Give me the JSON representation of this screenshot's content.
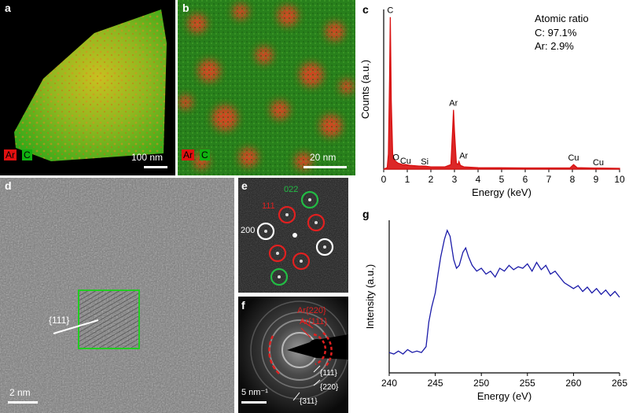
{
  "panels": {
    "a": {
      "label": "a",
      "scale": "100 nm",
      "legend": [
        "Ar",
        "C"
      ]
    },
    "b": {
      "label": "b",
      "scale": "20 nm",
      "legend": [
        "Ar",
        "C"
      ]
    },
    "d": {
      "label": "d",
      "scale": "2 nm",
      "plane": "{111}"
    },
    "e": {
      "label": "e",
      "spots": [
        "022",
        "111",
        "200"
      ]
    },
    "f": {
      "label": "f",
      "scale": "5 nm⁻¹",
      "rings": [
        "Ar{220}",
        "Ar{111}",
        "{111}",
        "{220}",
        "{311}"
      ]
    }
  },
  "colors": {
    "ar": "#e01010",
    "c": "#10b010",
    "eds": "#d81010",
    "eels": "#1a1aa8"
  },
  "chart_data": [
    {
      "panel": "c",
      "type": "line",
      "xlabel": "Energy (keV)",
      "ylabel": "Counts (a.u.)",
      "xlim": [
        0,
        10
      ],
      "xticks": [
        0,
        1,
        2,
        3,
        4,
        5,
        6,
        7,
        8,
        9,
        10
      ],
      "annotation": {
        "title": "Atomic ratio",
        "lines": [
          "C: 97.1%",
          "Ar: 2.9%"
        ]
      },
      "peaks": [
        {
          "label": "C",
          "x": 0.28,
          "y": 100
        },
        {
          "label": "O",
          "x": 0.52,
          "y": 4
        },
        {
          "label": "Cu",
          "x": 0.93,
          "y": 2
        },
        {
          "label": "Si",
          "x": 1.74,
          "y": 1.5
        },
        {
          "label": "Ar",
          "x": 2.96,
          "y": 39
        },
        {
          "label": "Ar",
          "x": 3.19,
          "y": 5
        },
        {
          "label": "Cu",
          "x": 8.05,
          "y": 3
        },
        {
          "label": "Cu",
          "x": 8.9,
          "y": 1
        }
      ],
      "x": [
        0,
        0.15,
        0.2,
        0.25,
        0.28,
        0.32,
        0.38,
        0.45,
        0.52,
        0.6,
        0.8,
        0.93,
        1.1,
        1.5,
        1.74,
        2.0,
        2.6,
        2.85,
        2.92,
        2.96,
        3.0,
        3.08,
        3.15,
        3.19,
        3.25,
        3.4,
        4.0,
        6.0,
        7.9,
        8.05,
        8.2,
        8.9,
        10
      ],
      "y": [
        0,
        1,
        10,
        60,
        100,
        45,
        10,
        6,
        5,
        4,
        3,
        3,
        2.5,
        2,
        2,
        1.5,
        1.5,
        3,
        25,
        39,
        25,
        4,
        3,
        5,
        2.5,
        1.5,
        1,
        0.8,
        0.8,
        3,
        1,
        0.7,
        0.5
      ]
    },
    {
      "panel": "g",
      "type": "line",
      "xlabel": "Energy (eV)",
      "ylabel": "Intensity (a.u.)",
      "xlim": [
        240,
        265
      ],
      "xticks": [
        240,
        245,
        250,
        255,
        260,
        265
      ],
      "x": [
        240,
        240.5,
        241,
        241.5,
        242,
        242.5,
        243,
        243.5,
        244,
        244.3,
        244.6,
        245,
        245.3,
        245.6,
        246,
        246.3,
        246.6,
        247,
        247.3,
        247.6,
        248,
        248.3,
        248.6,
        249,
        249.5,
        250,
        250.5,
        251,
        251.5,
        252,
        252.5,
        253,
        253.5,
        254,
        254.5,
        255,
        255.5,
        256,
        256.5,
        257,
        257.5,
        258,
        258.5,
        259,
        259.5,
        260,
        260.5,
        261,
        261.5,
        262,
        262.5,
        263,
        263.5,
        264,
        264.5,
        265
      ],
      "y": [
        0.14,
        0.13,
        0.15,
        0.13,
        0.16,
        0.14,
        0.15,
        0.14,
        0.18,
        0.35,
        0.45,
        0.55,
        0.68,
        0.8,
        0.92,
        0.98,
        0.94,
        0.78,
        0.72,
        0.74,
        0.83,
        0.86,
        0.8,
        0.74,
        0.7,
        0.72,
        0.68,
        0.7,
        0.66,
        0.72,
        0.7,
        0.74,
        0.71,
        0.73,
        0.72,
        0.75,
        0.7,
        0.76,
        0.71,
        0.74,
        0.68,
        0.7,
        0.66,
        0.62,
        0.6,
        0.58,
        0.6,
        0.56,
        0.59,
        0.55,
        0.58,
        0.54,
        0.57,
        0.53,
        0.56,
        0.52
      ]
    }
  ]
}
